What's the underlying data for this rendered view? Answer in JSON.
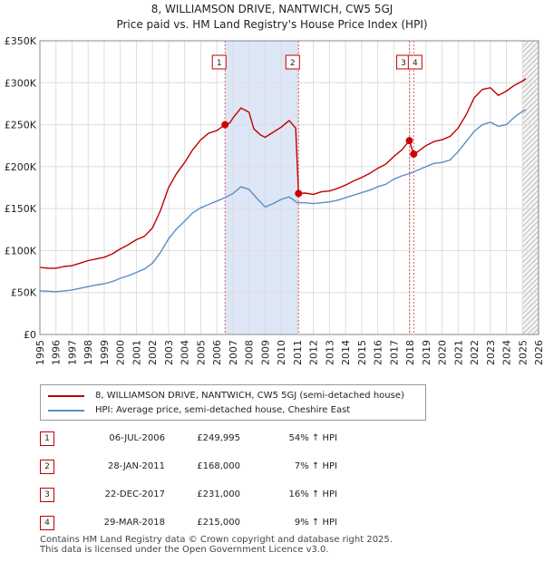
{
  "chart_data": {
    "type": "line",
    "title": "8, WILLIAMSON DRIVE, NANTWICH, CW5 5GJ",
    "subtitle": "Price paid vs. HM Land Registry's House Price Index (HPI)",
    "xlim": [
      1995,
      2026
    ],
    "ylim": [
      0,
      350000
    ],
    "x_ticks": [
      1995,
      1996,
      1997,
      1998,
      1999,
      2000,
      2001,
      2002,
      2003,
      2004,
      2005,
      2006,
      2007,
      2008,
      2009,
      2010,
      2011,
      2012,
      2013,
      2014,
      2015,
      2016,
      2017,
      2018,
      2019,
      2020,
      2021,
      2022,
      2023,
      2024,
      2025,
      2026
    ],
    "y_ticks": [
      0,
      50000,
      100000,
      150000,
      200000,
      250000,
      300000,
      350000
    ],
    "y_tick_labels": [
      "£0",
      "£50K",
      "£100K",
      "£150K",
      "£200K",
      "£250K",
      "£300K",
      "£350K"
    ],
    "colors": {
      "property": "#c00000",
      "hpi": "#5b8ec7",
      "shade": "#dde6f6",
      "vline": "#e06060",
      "grid": "#dddddd"
    },
    "shaded_periods": [
      [
        2006.51,
        2011.08
      ]
    ],
    "future_hatch_from": 2025.0,
    "series": [
      {
        "name": "8, WILLIAMSON DRIVE, NANTWICH, CW5 5GJ (semi-detached house)",
        "key": "property",
        "x": [
          1995,
          1995.5,
          1996,
          1996.5,
          1997,
          1997.5,
          1998,
          1998.5,
          1999,
          1999.5,
          2000,
          2000.5,
          2001,
          2001.5,
          2002,
          2002.5,
          2003,
          2003.5,
          2004,
          2004.5,
          2005,
          2005.5,
          2006,
          2006.51,
          2006.8,
          2007,
          2007.5,
          2008,
          2008.3,
          2008.7,
          2009,
          2009.5,
          2010,
          2010.5,
          2010.9,
          2011.08,
          2011.5,
          2012,
          2012.5,
          2013,
          2013.5,
          2014,
          2014.5,
          2015,
          2015.5,
          2016,
          2016.5,
          2017,
          2017.5,
          2017.97,
          2018.24,
          2018.5,
          2019,
          2019.5,
          2020,
          2020.5,
          2021,
          2021.5,
          2022,
          2022.5,
          2023,
          2023.5,
          2024,
          2024.5,
          2025,
          2025.2
        ],
        "values": [
          80000,
          79000,
          79000,
          81000,
          82000,
          85000,
          88000,
          90000,
          92000,
          96000,
          102000,
          107000,
          113000,
          117000,
          127000,
          148000,
          175000,
          192000,
          205000,
          220000,
          232000,
          240000,
          243000,
          249995,
          252000,
          258000,
          270000,
          265000,
          245000,
          238000,
          235000,
          241000,
          247000,
          255000,
          246000,
          168000,
          168500,
          167000,
          170000,
          171000,
          174000,
          178000,
          183000,
          187000,
          192000,
          198000,
          203000,
          212000,
          220000,
          231000,
          215000,
          218000,
          225000,
          230000,
          232000,
          236000,
          246000,
          262000,
          282000,
          292000,
          294000,
          285000,
          290000,
          297000,
          302000,
          305000
        ]
      },
      {
        "name": "HPI: Average price, semi-detached house, Cheshire East",
        "key": "hpi",
        "x": [
          1995,
          1995.5,
          1996,
          1996.5,
          1997,
          1997.5,
          1998,
          1998.5,
          1999,
          1999.5,
          2000,
          2000.5,
          2001,
          2001.5,
          2002,
          2002.5,
          2003,
          2003.5,
          2004,
          2004.5,
          2005,
          2005.5,
          2006,
          2006.5,
          2007,
          2007.5,
          2008,
          2008.5,
          2009,
          2009.5,
          2010,
          2010.5,
          2011,
          2011.5,
          2012,
          2012.5,
          2013,
          2013.5,
          2014,
          2014.5,
          2015,
          2015.5,
          2016,
          2016.5,
          2017,
          2017.5,
          2018,
          2018.5,
          2019,
          2019.5,
          2020,
          2020.5,
          2021,
          2021.5,
          2022,
          2022.5,
          2023,
          2023.5,
          2024,
          2024.5,
          2025,
          2025.2
        ],
        "values": [
          52000,
          51500,
          51000,
          52000,
          53000,
          55000,
          57000,
          59000,
          60500,
          63000,
          67000,
          70000,
          74000,
          78000,
          85000,
          98000,
          114000,
          126000,
          135000,
          145000,
          151000,
          155000,
          159000,
          163000,
          168000,
          176000,
          173000,
          162000,
          152000,
          156000,
          161000,
          164000,
          157000,
          157000,
          156000,
          157000,
          158000,
          160000,
          163000,
          166000,
          169000,
          172000,
          176000,
          179000,
          185000,
          189000,
          192000,
          196000,
          200000,
          204000,
          205000,
          208000,
          218000,
          230000,
          242000,
          250000,
          253000,
          248000,
          250000,
          259000,
          266000,
          268000
        ]
      }
    ],
    "sales": [
      {
        "label": "1",
        "date": "06-JUL-2006",
        "x": 2006.51,
        "price": "£249,995",
        "value": 249995,
        "hpi": "54% ↑ HPI"
      },
      {
        "label": "2",
        "date": "28-JAN-2011",
        "x": 2011.08,
        "price": "£168,000",
        "value": 168000,
        "hpi": "7% ↑ HPI"
      },
      {
        "label": "3",
        "date": "22-DEC-2017",
        "x": 2017.97,
        "price": "£231,000",
        "value": 231000,
        "hpi": "16% ↑ HPI"
      },
      {
        "label": "4",
        "date": "29-MAR-2018",
        "x": 2018.24,
        "price": "£215,000",
        "value": 215000,
        "hpi": "9% ↑ HPI"
      }
    ]
  },
  "footer": {
    "line1": "Contains HM Land Registry data © Crown copyright and database right 2025.",
    "line2": "This data is licensed under the Open Government Licence v3.0."
  }
}
